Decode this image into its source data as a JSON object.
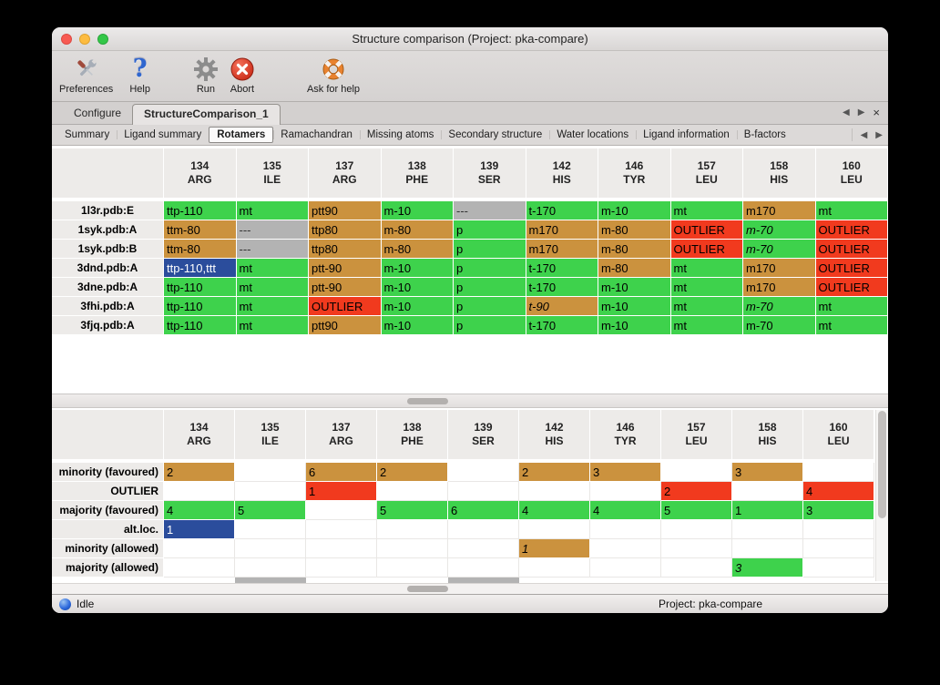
{
  "window": {
    "title": "Structure comparison (Project: pka-compare)"
  },
  "toolbar": {
    "items": [
      {
        "label": "Preferences",
        "icon": "crossed-tools"
      },
      {
        "label": "Help",
        "icon": "question-mark"
      },
      {
        "label": "Run",
        "icon": "gear"
      },
      {
        "label": "Abort",
        "icon": "red-cross-circle"
      },
      {
        "label": "Ask for help",
        "icon": "lifebuoy"
      }
    ]
  },
  "tab_bar": {
    "tabs": [
      {
        "label": "Configure",
        "active": false
      },
      {
        "label": "StructureComparison_1",
        "active": true
      }
    ],
    "nav": {
      "prev": "◀",
      "next": "▶",
      "close": "×"
    }
  },
  "subtab_bar": {
    "tabs": [
      {
        "label": "Summary",
        "active": false
      },
      {
        "label": "Ligand summary",
        "active": false
      },
      {
        "label": "Rotamers",
        "active": true
      },
      {
        "label": "Ramachandran",
        "active": false
      },
      {
        "label": "Missing atoms",
        "active": false
      },
      {
        "label": "Secondary structure",
        "active": false
      },
      {
        "label": "Water locations",
        "active": false
      },
      {
        "label": "Ligand information",
        "active": false
      },
      {
        "label": "B-factors",
        "active": false
      }
    ],
    "nav": {
      "prev": "◀",
      "next": "▶"
    }
  },
  "columns": [
    {
      "num": "134",
      "res": "ARG"
    },
    {
      "num": "135",
      "res": "ILE"
    },
    {
      "num": "137",
      "res": "ARG"
    },
    {
      "num": "138",
      "res": "PHE"
    },
    {
      "num": "139",
      "res": "SER"
    },
    {
      "num": "142",
      "res": "HIS"
    },
    {
      "num": "146",
      "res": "TYR"
    },
    {
      "num": "157",
      "res": "LEU"
    },
    {
      "num": "158",
      "res": "HIS"
    },
    {
      "num": "160",
      "res": "LEU"
    }
  ],
  "structures_table": {
    "rows": [
      {
        "label": "1l3r.pdb:E",
        "cells": [
          {
            "text": "ttp-110",
            "state": "majority"
          },
          {
            "text": "mt",
            "state": "majority"
          },
          {
            "text": "ptt90",
            "state": "minority"
          },
          {
            "text": "m-10",
            "state": "majority"
          },
          {
            "text": "---",
            "state": "missing"
          },
          {
            "text": "t-170",
            "state": "majority"
          },
          {
            "text": "m-10",
            "state": "majority"
          },
          {
            "text": "mt",
            "state": "majority"
          },
          {
            "text": "m170",
            "state": "minority"
          },
          {
            "text": "mt",
            "state": "majority"
          }
        ]
      },
      {
        "label": "1syk.pdb:A",
        "cells": [
          {
            "text": "ttm-80",
            "state": "minority"
          },
          {
            "text": "---",
            "state": "missing"
          },
          {
            "text": "ttp80",
            "state": "minority"
          },
          {
            "text": "m-80",
            "state": "minority"
          },
          {
            "text": "p",
            "state": "majority"
          },
          {
            "text": "m170",
            "state": "minority"
          },
          {
            "text": "m-80",
            "state": "minority"
          },
          {
            "text": "OUTLIER",
            "state": "outlier"
          },
          {
            "text": "m-70",
            "state": "majority",
            "italic": true
          },
          {
            "text": "OUTLIER",
            "state": "outlier"
          }
        ]
      },
      {
        "label": "1syk.pdb:B",
        "cells": [
          {
            "text": "ttm-80",
            "state": "minority"
          },
          {
            "text": "---",
            "state": "missing"
          },
          {
            "text": "ttp80",
            "state": "minority"
          },
          {
            "text": "m-80",
            "state": "minority"
          },
          {
            "text": "p",
            "state": "majority"
          },
          {
            "text": "m170",
            "state": "minority"
          },
          {
            "text": "m-80",
            "state": "minority"
          },
          {
            "text": "OUTLIER",
            "state": "outlier"
          },
          {
            "text": "m-70",
            "state": "majority",
            "italic": true
          },
          {
            "text": "OUTLIER",
            "state": "outlier"
          }
        ]
      },
      {
        "label": "3dnd.pdb:A",
        "cells": [
          {
            "text": "ttp-110,ttt",
            "state": "selected"
          },
          {
            "text": "mt",
            "state": "majority"
          },
          {
            "text": "ptt-90",
            "state": "minority"
          },
          {
            "text": "m-10",
            "state": "majority"
          },
          {
            "text": "p",
            "state": "majority"
          },
          {
            "text": "t-170",
            "state": "majority"
          },
          {
            "text": "m-80",
            "state": "minority"
          },
          {
            "text": "mt",
            "state": "majority"
          },
          {
            "text": "m170",
            "state": "minority"
          },
          {
            "text": "OUTLIER",
            "state": "outlier"
          }
        ]
      },
      {
        "label": "3dne.pdb:A",
        "cells": [
          {
            "text": "ttp-110",
            "state": "majority"
          },
          {
            "text": "mt",
            "state": "majority"
          },
          {
            "text": "ptt-90",
            "state": "minority"
          },
          {
            "text": "m-10",
            "state": "majority"
          },
          {
            "text": "p",
            "state": "majority"
          },
          {
            "text": "t-170",
            "state": "majority"
          },
          {
            "text": "m-10",
            "state": "majority"
          },
          {
            "text": "mt",
            "state": "majority"
          },
          {
            "text": "m170",
            "state": "minority"
          },
          {
            "text": "OUTLIER",
            "state": "outlier"
          }
        ]
      },
      {
        "label": "3fhi.pdb:A",
        "cells": [
          {
            "text": "ttp-110",
            "state": "majority"
          },
          {
            "text": "mt",
            "state": "majority"
          },
          {
            "text": "OUTLIER",
            "state": "outlier"
          },
          {
            "text": "m-10",
            "state": "majority"
          },
          {
            "text": "p",
            "state": "majority"
          },
          {
            "text": "t-90",
            "state": "minority",
            "italic": true
          },
          {
            "text": "m-10",
            "state": "majority"
          },
          {
            "text": "mt",
            "state": "majority"
          },
          {
            "text": "m-70",
            "state": "majority",
            "italic": true
          },
          {
            "text": "mt",
            "state": "majority"
          }
        ]
      },
      {
        "label": "3fjq.pdb:A",
        "cells": [
          {
            "text": "ttp-110",
            "state": "majority"
          },
          {
            "text": "mt",
            "state": "majority"
          },
          {
            "text": "ptt90",
            "state": "minority"
          },
          {
            "text": "m-10",
            "state": "majority"
          },
          {
            "text": "p",
            "state": "majority"
          },
          {
            "text": "t-170",
            "state": "majority"
          },
          {
            "text": "m-10",
            "state": "majority"
          },
          {
            "text": "mt",
            "state": "majority"
          },
          {
            "text": "m-70",
            "state": "majority"
          },
          {
            "text": "mt",
            "state": "majority"
          }
        ]
      }
    ]
  },
  "summary_table": {
    "rows": [
      {
        "label": "minority (favoured)",
        "cells": [
          {
            "text": "2",
            "state": "minority"
          },
          {
            "text": "",
            "state": "empty"
          },
          {
            "text": "6",
            "state": "minority"
          },
          {
            "text": "2",
            "state": "minority"
          },
          {
            "text": "",
            "state": "empty"
          },
          {
            "text": "2",
            "state": "minority"
          },
          {
            "text": "3",
            "state": "minority"
          },
          {
            "text": "",
            "state": "empty"
          },
          {
            "text": "3",
            "state": "minority"
          },
          {
            "text": "",
            "state": "empty"
          }
        ]
      },
      {
        "label": "OUTLIER",
        "cells": [
          {
            "text": "",
            "state": "empty"
          },
          {
            "text": "",
            "state": "empty"
          },
          {
            "text": "1",
            "state": "outlier"
          },
          {
            "text": "",
            "state": "empty"
          },
          {
            "text": "",
            "state": "empty"
          },
          {
            "text": "",
            "state": "empty"
          },
          {
            "text": "",
            "state": "empty"
          },
          {
            "text": "2",
            "state": "outlier"
          },
          {
            "text": "",
            "state": "empty"
          },
          {
            "text": "4",
            "state": "outlier"
          }
        ]
      },
      {
        "label": "majority (favoured)",
        "cells": [
          {
            "text": "4",
            "state": "majority"
          },
          {
            "text": "5",
            "state": "majority"
          },
          {
            "text": "",
            "state": "empty"
          },
          {
            "text": "5",
            "state": "majority"
          },
          {
            "text": "6",
            "state": "majority"
          },
          {
            "text": "4",
            "state": "majority"
          },
          {
            "text": "4",
            "state": "majority"
          },
          {
            "text": "5",
            "state": "majority"
          },
          {
            "text": "1",
            "state": "majority"
          },
          {
            "text": "3",
            "state": "majority"
          }
        ]
      },
      {
        "label": "alt.loc.",
        "cells": [
          {
            "text": "1",
            "state": "altloc"
          },
          {
            "text": "",
            "state": "empty"
          },
          {
            "text": "",
            "state": "empty"
          },
          {
            "text": "",
            "state": "empty"
          },
          {
            "text": "",
            "state": "empty"
          },
          {
            "text": "",
            "state": "empty"
          },
          {
            "text": "",
            "state": "empty"
          },
          {
            "text": "",
            "state": "empty"
          },
          {
            "text": "",
            "state": "empty"
          },
          {
            "text": "",
            "state": "empty"
          }
        ]
      },
      {
        "label": "minority (allowed)",
        "cells": [
          {
            "text": "",
            "state": "empty"
          },
          {
            "text": "",
            "state": "empty"
          },
          {
            "text": "",
            "state": "empty"
          },
          {
            "text": "",
            "state": "empty"
          },
          {
            "text": "",
            "state": "empty"
          },
          {
            "text": "1",
            "state": "minority",
            "italic": true
          },
          {
            "text": "",
            "state": "empty"
          },
          {
            "text": "",
            "state": "empty"
          },
          {
            "text": "",
            "state": "empty"
          },
          {
            "text": "",
            "state": "empty"
          }
        ]
      },
      {
        "label": "majority (allowed)",
        "cells": [
          {
            "text": "",
            "state": "empty"
          },
          {
            "text": "",
            "state": "empty"
          },
          {
            "text": "",
            "state": "empty"
          },
          {
            "text": "",
            "state": "empty"
          },
          {
            "text": "",
            "state": "empty"
          },
          {
            "text": "",
            "state": "empty"
          },
          {
            "text": "",
            "state": "empty"
          },
          {
            "text": "",
            "state": "empty"
          },
          {
            "text": "3",
            "state": "majority",
            "italic": true
          },
          {
            "text": "",
            "state": "empty"
          }
        ]
      }
    ],
    "partial_row": {
      "states": [
        "",
        "missing",
        "",
        "",
        "missing",
        "",
        "",
        "",
        "",
        ""
      ]
    }
  },
  "status_bar": {
    "status": "Idle",
    "project": "Project: pka-compare"
  },
  "colors": {
    "majority": "#3ed24c",
    "minority": "#cb923e",
    "outlier": "#f13a1e",
    "missing": "#b3b3b3",
    "selected": "#2b4d9c"
  }
}
